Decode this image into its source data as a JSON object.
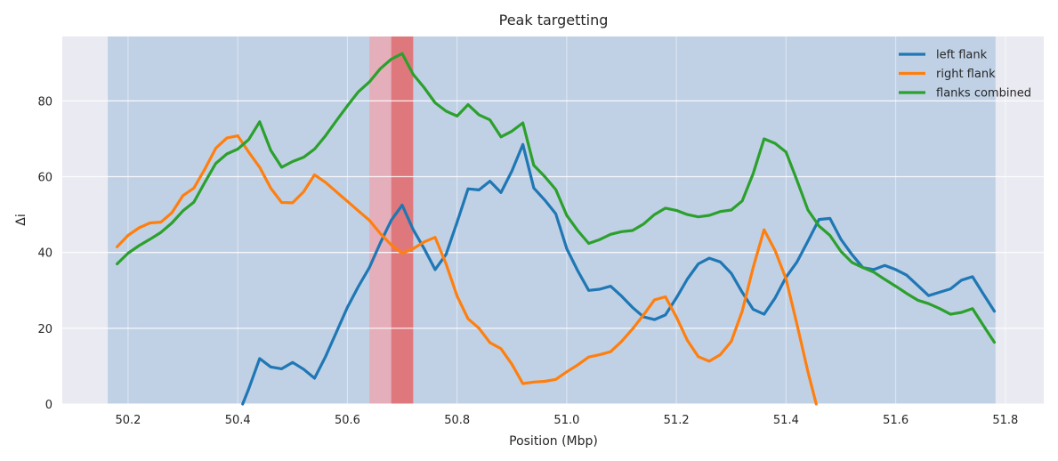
{
  "chart_data": {
    "type": "line",
    "title": "Peak targetting",
    "xlabel": "Position (Mbp)",
    "ylabel": "Δi",
    "xlim": [
      50.08,
      51.87
    ],
    "ylim": [
      0,
      97
    ],
    "x_ticks": [
      50.2,
      50.4,
      50.6,
      50.8,
      51.0,
      51.2,
      51.4,
      51.6,
      51.8
    ],
    "x_tick_labels": [
      "50.2",
      "50.4",
      "50.6",
      "50.8",
      "51.0",
      "51.2",
      "51.4",
      "51.6",
      "51.8"
    ],
    "y_ticks": [
      0,
      20,
      40,
      60,
      80
    ],
    "y_tick_labels": [
      "0",
      "20",
      "40",
      "60",
      "80"
    ],
    "grid": true,
    "legend_position": "top-right",
    "colors": {
      "plot_background": "#eaeaf2",
      "grid": "#ffffff",
      "analysis_window": "#b0c8e0",
      "light_region": "#e5a5ad",
      "dark_region": "#dd7678"
    },
    "shaded_regions": [
      {
        "x_start": 50.163,
        "x_end": 51.782,
        "color": "#b0c8e0",
        "opacity": 0.72
      },
      {
        "x_start": 50.64,
        "x_end": 50.72,
        "color": "#f0a3ac",
        "opacity": 0.75
      },
      {
        "x_start": 50.68,
        "x_end": 50.72,
        "color": "#dd6a6e",
        "opacity": 0.8
      }
    ],
    "series": [
      {
        "name": "left flank",
        "color": "#1f77b4",
        "x": [
          50.409,
          50.42,
          50.44,
          50.46,
          50.48,
          50.5,
          50.52,
          50.54,
          50.56,
          50.58,
          50.6,
          50.62,
          50.64,
          50.66,
          50.68,
          50.7,
          50.72,
          50.74,
          50.76,
          50.78,
          50.8,
          50.82,
          50.84,
          50.86,
          50.88,
          50.9,
          50.92,
          50.94,
          50.96,
          50.98,
          51.0,
          51.02,
          51.04,
          51.06,
          51.08,
          51.1,
          51.12,
          51.14,
          51.16,
          51.18,
          51.2,
          51.22,
          51.24,
          51.26,
          51.28,
          51.3,
          51.32,
          51.34,
          51.36,
          51.38,
          51.4,
          51.42,
          51.44,
          51.46,
          51.48,
          51.5,
          51.52,
          51.54,
          51.56,
          51.58,
          51.6,
          51.62,
          51.64,
          51.66,
          51.68,
          51.7,
          51.72,
          51.74,
          51.76,
          51.78
        ],
        "y": [
          0,
          4,
          12,
          9.8,
          9.3,
          11,
          9.2,
          6.8,
          12.5,
          19,
          25.5,
          31,
          36,
          42.5,
          48.5,
          52.5,
          46,
          41,
          35.5,
          39.5,
          48,
          56.8,
          56.5,
          58.8,
          55.8,
          61.5,
          68.5,
          57,
          53.8,
          50.2,
          41,
          35.2,
          30,
          30.3,
          31.1,
          28.5,
          25.5,
          23,
          22.3,
          23.5,
          28,
          33,
          37,
          38.5,
          37.5,
          34.5,
          29.5,
          25,
          23.7,
          28,
          33.5,
          37.5,
          43,
          48.7,
          49,
          43.5,
          39.5,
          36,
          35.5,
          36.6,
          35.5,
          34,
          31.3,
          28.6,
          29.5,
          30.4,
          32.7,
          33.6,
          29,
          24.5
        ]
      },
      {
        "name": "right flank",
        "color": "#ff7f0e",
        "x": [
          50.18,
          50.2,
          50.22,
          50.24,
          50.26,
          50.28,
          50.3,
          50.32,
          50.34,
          50.36,
          50.38,
          50.4,
          50.42,
          50.44,
          50.46,
          50.48,
          50.5,
          50.52,
          50.54,
          50.56,
          50.58,
          50.6,
          50.62,
          50.64,
          50.66,
          50.68,
          50.7,
          50.72,
          50.74,
          50.76,
          50.78,
          50.8,
          50.82,
          50.84,
          50.86,
          50.88,
          50.9,
          50.92,
          50.94,
          50.96,
          50.98,
          51.0,
          51.02,
          51.04,
          51.06,
          51.08,
          51.1,
          51.12,
          51.14,
          51.16,
          51.18,
          51.2,
          51.22,
          51.24,
          51.26,
          51.28,
          51.3,
          51.32,
          51.34,
          51.36,
          51.38,
          51.4,
          51.42,
          51.44,
          51.455
        ],
        "y": [
          41.5,
          44.5,
          46.5,
          47.8,
          48,
          50.5,
          55,
          57,
          62,
          67.5,
          70.2,
          70.8,
          66.5,
          62.5,
          57,
          53.2,
          53.1,
          56,
          60.5,
          58.5,
          56,
          53.5,
          51,
          48.5,
          45,
          42,
          39.8,
          41,
          42.8,
          44,
          37,
          28.5,
          22.5,
          20,
          16.2,
          14.6,
          10.5,
          5.4,
          5.8,
          6,
          6.5,
          8.5,
          10.3,
          12.4,
          13,
          13.8,
          16.5,
          19.8,
          23.5,
          27.5,
          28.3,
          23,
          16.8,
          12.5,
          11.3,
          13,
          16.5,
          24.5,
          36,
          46,
          40.5,
          33,
          21,
          8.5,
          0
        ]
      },
      {
        "name": "flanks combined",
        "color": "#2ca02c",
        "x": [
          50.18,
          50.2,
          50.22,
          50.24,
          50.26,
          50.28,
          50.3,
          50.32,
          50.34,
          50.36,
          50.38,
          50.4,
          50.42,
          50.44,
          50.46,
          50.48,
          50.5,
          50.52,
          50.54,
          50.56,
          50.58,
          50.6,
          50.62,
          50.64,
          50.66,
          50.68,
          50.7,
          50.72,
          50.74,
          50.76,
          50.78,
          50.8,
          50.82,
          50.84,
          50.86,
          50.88,
          50.9,
          50.92,
          50.94,
          50.96,
          50.98,
          51.0,
          51.02,
          51.04,
          51.06,
          51.08,
          51.1,
          51.12,
          51.14,
          51.16,
          51.18,
          51.2,
          51.22,
          51.24,
          51.26,
          51.28,
          51.3,
          51.32,
          51.34,
          51.36,
          51.38,
          51.4,
          51.42,
          51.44,
          51.46,
          51.48,
          51.5,
          51.52,
          51.54,
          51.56,
          51.58,
          51.6,
          51.62,
          51.64,
          51.66,
          51.68,
          51.7,
          51.72,
          51.74,
          51.76,
          51.78
        ],
        "y": [
          37,
          39.8,
          41.8,
          43.5,
          45.3,
          47.8,
          51,
          53.3,
          58.5,
          63.5,
          66,
          67.3,
          69.8,
          74.5,
          67,
          62.5,
          64,
          65.1,
          67.3,
          70.8,
          74.8,
          78.7,
          82.4,
          85,
          88.5,
          91,
          92.5,
          87,
          83.5,
          79.5,
          77.3,
          76,
          79,
          76.3,
          75,
          70.5,
          72,
          74.2,
          63,
          60,
          56.6,
          49.8,
          45.8,
          42.4,
          43.4,
          44.8,
          45.5,
          45.8,
          47.5,
          50,
          51.7,
          51.1,
          50,
          49.4,
          49.8,
          50.8,
          51.2,
          53.6,
          60.8,
          70,
          68.8,
          66.5,
          59,
          51.2,
          47,
          44.5,
          40.3,
          37.4,
          36,
          34.8,
          32.9,
          31.1,
          29.2,
          27.4,
          26.5,
          25.2,
          23.7,
          24.2,
          25.2,
          20.7,
          16.3
        ]
      }
    ]
  }
}
